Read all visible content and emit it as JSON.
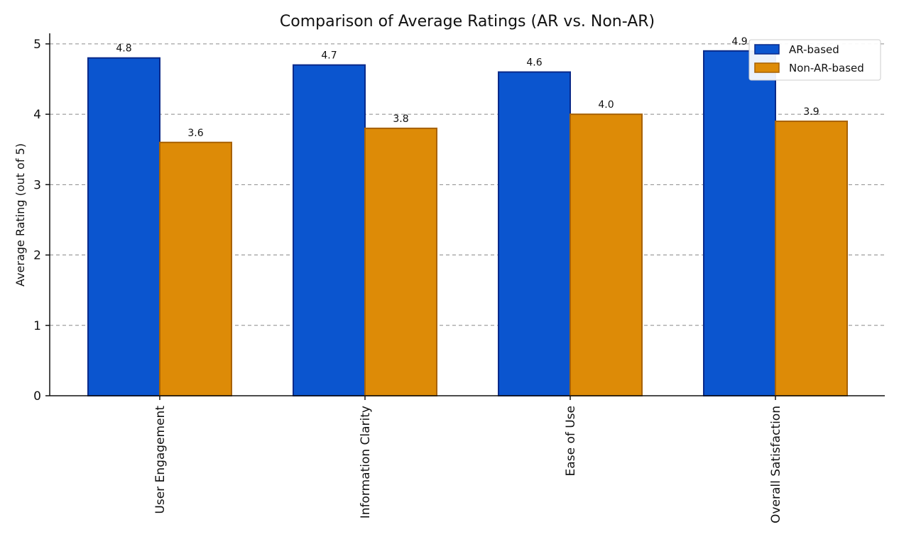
{
  "chart_data": {
    "type": "bar",
    "title": "Comparison of Average Ratings (AR vs. Non-AR)",
    "xlabel": "",
    "ylabel": "Average Rating (out of 5)",
    "ylim": [
      0,
      5.15
    ],
    "yticks": [
      0,
      1,
      2,
      3,
      4,
      5
    ],
    "grid": true,
    "legend_position": "top-right",
    "categories": [
      "User Engagement",
      "Information Clarity",
      "Ease of Use",
      "Overall Satisfaction"
    ],
    "series": [
      {
        "name": "AR-based",
        "values": [
          4.8,
          4.7,
          4.6,
          4.9
        ],
        "labels": [
          "4.8",
          "4.7",
          "4.6",
          "4.9"
        ],
        "color": "#0b55cf",
        "edge": "#0a2a8a"
      },
      {
        "name": "Non-AR-based",
        "values": [
          3.6,
          3.8,
          4.0,
          3.9
        ],
        "labels": [
          "3.6",
          "3.8",
          "4.0",
          "3.9"
        ],
        "color": "#dd8b07",
        "edge": "#a86204"
      }
    ]
  }
}
